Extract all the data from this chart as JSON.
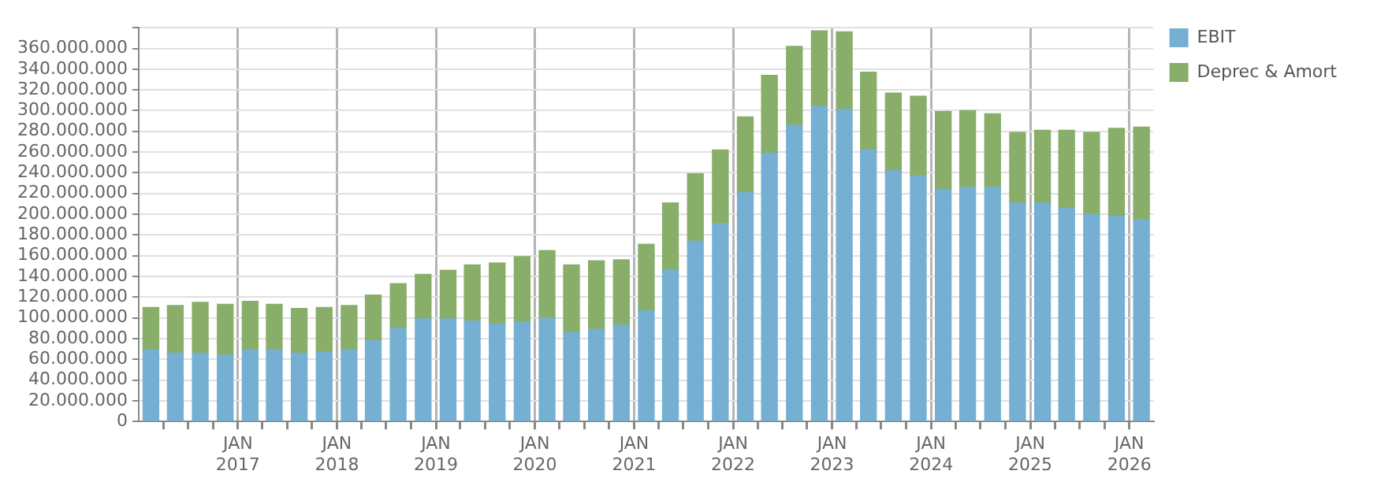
{
  "chart_data": {
    "type": "bar",
    "stacked": true,
    "x": [
      "2016-02-15",
      "2016-05-15",
      "2016-08-15",
      "2016-11-15",
      "2017-02-15",
      "2017-05-15",
      "2017-08-15",
      "2017-11-15",
      "2018-02-15",
      "2018-05-15",
      "2018-08-15",
      "2018-11-15",
      "2019-02-15",
      "2019-05-15",
      "2019-08-15",
      "2019-11-15",
      "2020-02-15",
      "2020-05-15",
      "2020-08-15",
      "2020-11-15",
      "2021-02-15",
      "2021-05-15",
      "2021-08-15",
      "2021-11-15",
      "2022-02-15",
      "2022-05-15",
      "2022-08-15",
      "2022-11-15",
      "2023-02-15",
      "2023-05-15",
      "2023-08-15",
      "2023-11-15",
      "2024-02-15",
      "2024-05-15",
      "2024-08-15",
      "2024-11-15",
      "2025-02-15",
      "2025-05-15",
      "2025-08-15",
      "2025-11-15",
      "2026-02-15"
    ],
    "series": [
      {
        "name": "EBIT",
        "color": "#75b0d3",
        "values": [
          69000000,
          66000000,
          66000000,
          64000000,
          69000000,
          69000000,
          66000000,
          67000000,
          69000000,
          78000000,
          90000000,
          99000000,
          99000000,
          97000000,
          94000000,
          96000000,
          100000000,
          86000000,
          89000000,
          93000000,
          107000000,
          146000000,
          174000000,
          191000000,
          221000000,
          259000000,
          286000000,
          304000000,
          301000000,
          262000000,
          242000000,
          237000000,
          224000000,
          226000000,
          226000000,
          211000000,
          211000000,
          206000000,
          200000000,
          198000000,
          195000000
        ]
      },
      {
        "name": "Deprec & Amort",
        "color": "#88ae6a",
        "values": [
          41000000,
          46000000,
          49000000,
          49000000,
          47000000,
          44000000,
          43000000,
          43000000,
          43000000,
          44000000,
          43000000,
          43000000,
          47000000,
          54000000,
          59000000,
          63000000,
          65000000,
          65000000,
          66000000,
          63000000,
          64000000,
          65000000,
          65000000,
          71000000,
          73000000,
          75000000,
          76000000,
          73000000,
          75000000,
          75000000,
          75000000,
          77000000,
          75000000,
          74000000,
          71000000,
          68000000,
          70000000,
          75000000,
          79000000,
          85000000,
          89000000
        ]
      }
    ],
    "xlim": [
      "2016-01-01",
      "2026-04-01"
    ],
    "xticks": [
      {
        "value": "2016-04",
        "label": null
      },
      {
        "value": "2016-07",
        "label": null
      },
      {
        "value": "2016-10",
        "label": null
      },
      {
        "value": "2017-01",
        "label": "JAN 2017"
      },
      {
        "value": "2017-04",
        "label": null
      },
      {
        "value": "2017-07",
        "label": null
      },
      {
        "value": "2017-10",
        "label": null
      },
      {
        "value": "2018-01",
        "label": "JAN 2018"
      },
      {
        "value": "2018-04",
        "label": null
      },
      {
        "value": "2018-07",
        "label": null
      },
      {
        "value": "2018-10",
        "label": null
      },
      {
        "value": "2019-01",
        "label": "JAN 2019"
      },
      {
        "value": "2019-04",
        "label": null
      },
      {
        "value": "2019-07",
        "label": null
      },
      {
        "value": "2019-10",
        "label": null
      },
      {
        "value": "2020-01",
        "label": "JAN 2020"
      },
      {
        "value": "2020-04",
        "label": null
      },
      {
        "value": "2020-07",
        "label": null
      },
      {
        "value": "2020-10",
        "label": null
      },
      {
        "value": "2021-01",
        "label": "JAN 2021"
      },
      {
        "value": "2021-04",
        "label": null
      },
      {
        "value": "2021-07",
        "label": null
      },
      {
        "value": "2021-10",
        "label": null
      },
      {
        "value": "2022-01",
        "label": "JAN 2022"
      },
      {
        "value": "2022-04",
        "label": null
      },
      {
        "value": "2022-07",
        "label": null
      },
      {
        "value": "2022-10",
        "label": null
      },
      {
        "value": "2023-01",
        "label": "JAN 2023"
      },
      {
        "value": "2023-04",
        "label": null
      },
      {
        "value": "2023-07",
        "label": null
      },
      {
        "value": "2023-10",
        "label": null
      },
      {
        "value": "2024-01",
        "label": "JAN 2024"
      },
      {
        "value": "2024-04",
        "label": null
      },
      {
        "value": "2024-07",
        "label": null
      },
      {
        "value": "2024-10",
        "label": null
      },
      {
        "value": "2025-01",
        "label": "JAN 2025"
      },
      {
        "value": "2025-04",
        "label": null
      },
      {
        "value": "2025-07",
        "label": null
      },
      {
        "value": "2025-10",
        "label": null
      },
      {
        "value": "2026-01",
        "label": "JAN 2026"
      }
    ],
    "ylim": [
      0,
      380000000
    ],
    "yticks": [
      {
        "value": 0,
        "label": "0"
      },
      {
        "value": 20000000,
        "label": "20.000.000"
      },
      {
        "value": 40000000,
        "label": "40.000.000"
      },
      {
        "value": 60000000,
        "label": "60.000.000"
      },
      {
        "value": 80000000,
        "label": "80.000.000"
      },
      {
        "value": 100000000,
        "label": "100.000.000"
      },
      {
        "value": 120000000,
        "label": "120.000.000"
      },
      {
        "value": 140000000,
        "label": "140.000.000"
      },
      {
        "value": 160000000,
        "label": "160.000.000"
      },
      {
        "value": 180000000,
        "label": "180.000.000"
      },
      {
        "value": 200000000,
        "label": "200.000.000"
      },
      {
        "value": 220000000,
        "label": "220.000.000"
      },
      {
        "value": 240000000,
        "label": "240.000.000"
      },
      {
        "value": 260000000,
        "label": "260.000.000"
      },
      {
        "value": 280000000,
        "label": "280.000.000"
      },
      {
        "value": 300000000,
        "label": "300.000.000"
      },
      {
        "value": 320000000,
        "label": "320.000.000"
      },
      {
        "value": 340000000,
        "label": "340.000.000"
      },
      {
        "value": 360000000,
        "label": "360.000.000"
      },
      {
        "value": 380000000,
        "label": null
      }
    ],
    "grid": true,
    "legend": "top right"
  }
}
